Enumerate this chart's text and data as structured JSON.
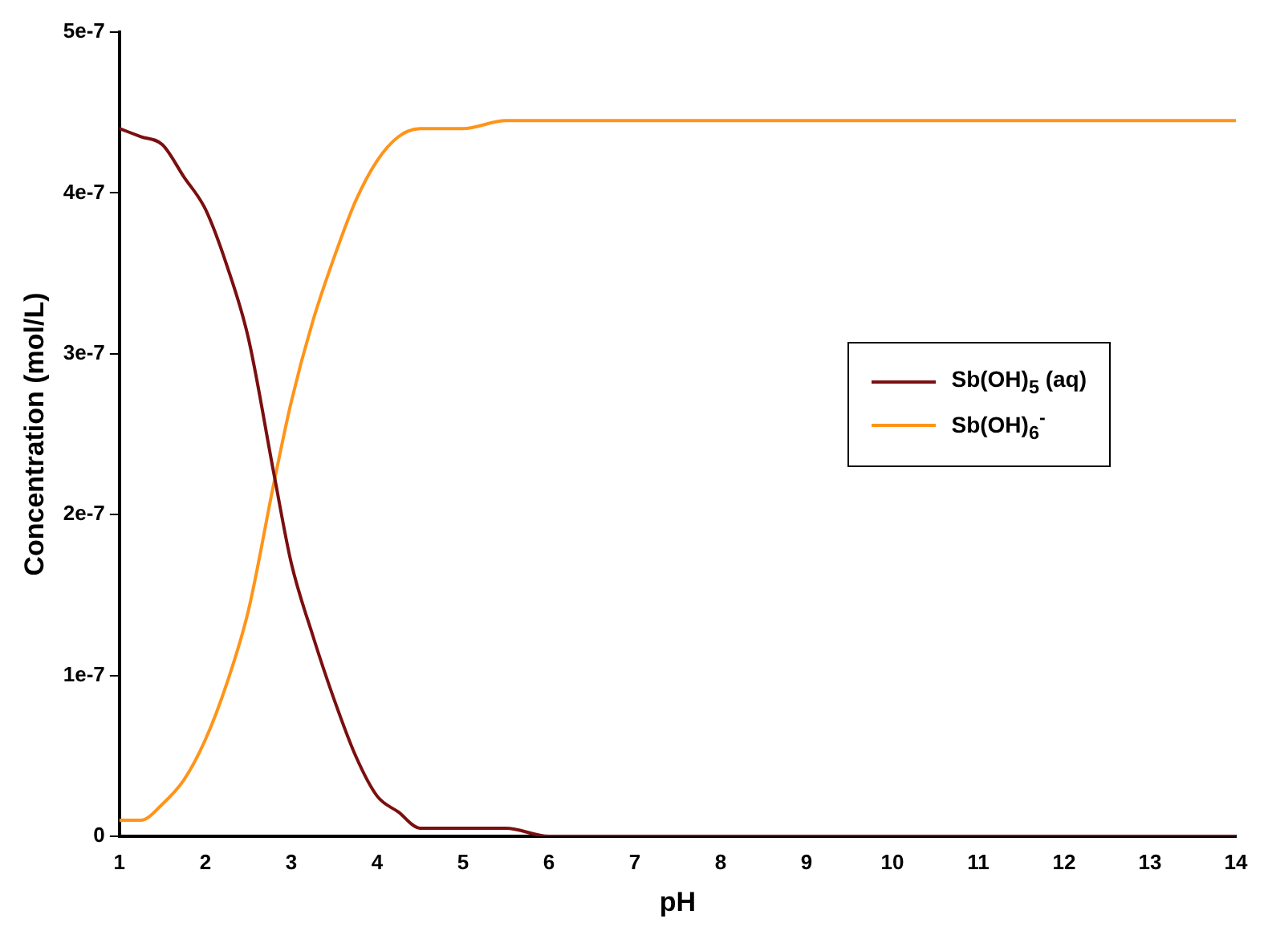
{
  "chart_data": {
    "type": "line",
    "xlabel": "pH",
    "ylabel": "Concentration (mol/L)",
    "xlim": [
      1,
      14
    ],
    "xticks": [
      1,
      2,
      3,
      4,
      5,
      6,
      7,
      8,
      9,
      10,
      11,
      12,
      13,
      14
    ],
    "ylim": [
      0,
      5e-07
    ],
    "yticks": [
      0,
      {
        "value": 1e-07,
        "label": "1e-7"
      },
      {
        "value": 2e-07,
        "label": "2e-7"
      },
      {
        "value": 3e-07,
        "label": "3e-7"
      },
      {
        "value": 4e-07,
        "label": "4e-7"
      },
      {
        "value": 5e-07,
        "label": "5e-7"
      }
    ],
    "grid": false,
    "legend": "right",
    "marker": "none",
    "line_style": "solid",
    "series": [
      {
        "name": "Sb(OH)$_{5}$ (aq)",
        "color": "#7b0f0f",
        "x": [
          1,
          1.25,
          1.5,
          1.75,
          2,
          2.25,
          2.5,
          2.8,
          3,
          3.25,
          3.5,
          3.75,
          4,
          4.25,
          4.5,
          5,
          5.5,
          6,
          7,
          8,
          10,
          12,
          14
        ],
        "values": [
          4.4e-07,
          4.35e-07,
          4.3e-07,
          4.1e-07,
          3.9e-07,
          3.55e-07,
          3.1e-07,
          2.25e-07,
          1.7e-07,
          1.25e-07,
          8.5e-08,
          5e-08,
          2.5e-08,
          1.5e-08,
          5e-09,
          5e-09,
          5e-09,
          0,
          0,
          0,
          0,
          0,
          0
        ]
      },
      {
        "name": "Sb(OH)$_{6}$$^{-}$",
        "color": "#ff9419",
        "x": [
          1,
          1.25,
          1.5,
          1.75,
          2,
          2.25,
          2.5,
          2.8,
          3,
          3.25,
          3.5,
          3.75,
          4,
          4.25,
          4.5,
          5,
          5.5,
          6,
          7,
          8,
          10,
          12,
          14
        ],
        "values": [
          1e-08,
          1e-08,
          2e-08,
          3.5e-08,
          6e-08,
          9.5e-08,
          1.4e-07,
          2.2e-07,
          2.7e-07,
          3.2e-07,
          3.6e-07,
          3.95e-07,
          4.2e-07,
          4.35e-07,
          4.4e-07,
          4.4e-07,
          4.45e-07,
          4.45e-07,
          4.45e-07,
          4.45e-07,
          4.45e-07,
          4.45e-07,
          4.45e-07
        ]
      }
    ]
  }
}
